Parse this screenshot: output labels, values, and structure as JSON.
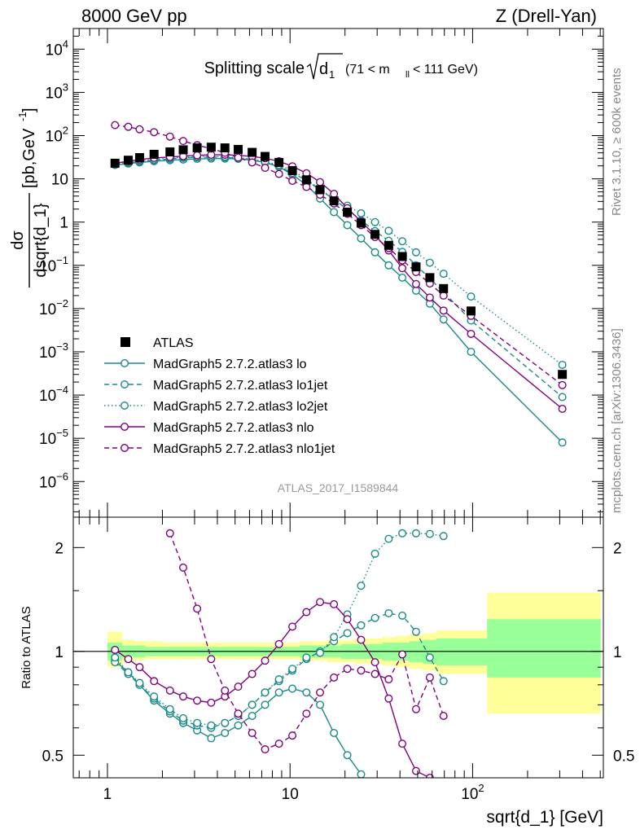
{
  "header": {
    "left": "8000 GeV pp",
    "right": "Z (Drell-Yan)"
  },
  "side_labels": {
    "rivet": "Rivet 3.1.10, ≥ 600k events",
    "mcplots": "mcplots.cern.ch [arXiv:1306.3436]"
  },
  "colors": {
    "atlas": "#000000",
    "teal": "#1a8a8a",
    "purple": "#800080",
    "band_yellow": "#ffff99",
    "band_green": "#99ff99"
  },
  "chart_data": [
    {
      "type": "line",
      "panel": "main",
      "title": "Splitting scale",
      "title_math": {
        "sqrt_base": "d",
        "sqrt_sub": "1",
        "range_pre": "(71 < m",
        "range_sub": "ll",
        "range_post": " < 111 GeV)"
      },
      "ylabel": {
        "num": "dσ",
        "den": "dsqrt{d_1}",
        "unit": "[pb,GeV",
        "unit_sup": "-1",
        "unit_close": "]"
      },
      "xscale": "log",
      "yscale": "log",
      "xlim": [
        0.65,
        520
      ],
      "ylim": [
        1.5e-07,
        30000.0
      ],
      "yticks": [
        {
          "v": 10000.0,
          "b": "10",
          "e": "4"
        },
        {
          "v": 1000.0,
          "b": "10",
          "e": "3"
        },
        {
          "v": 100.0,
          "b": "10",
          "e": "2"
        },
        {
          "v": 10,
          "b": "10",
          "e": ""
        },
        {
          "v": 1,
          "b": "1",
          "e": ""
        },
        {
          "v": 0.1,
          "b": "10",
          "e": "−1"
        },
        {
          "v": 0.01,
          "b": "10",
          "e": "−2"
        },
        {
          "v": 0.001,
          "b": "10",
          "e": "−3"
        },
        {
          "v": 0.0001,
          "b": "10",
          "e": "−4"
        },
        {
          "v": 1e-05,
          "b": "10",
          "e": "−5"
        },
        {
          "v": 1e-06,
          "b": "10",
          "e": "−6"
        }
      ],
      "watermark": "ATLAS_2017_I1589844",
      "legend_position": "lower-left",
      "series": [
        {
          "name": "ATLAS",
          "style": "data",
          "x": [
            1.1,
            1.3,
            1.5,
            1.8,
            2.2,
            2.6,
            3.1,
            3.7,
            4.4,
            5.2,
            6.2,
            7.3,
            8.7,
            10.3,
            12.3,
            14.6,
            17.4,
            20.6,
            24.5,
            29.2,
            34.7,
            41.2,
            49.0,
            58.3,
            69.3,
            98.0,
            310.0
          ],
          "y": [
            23,
            27,
            31,
            37,
            42,
            47,
            52,
            54,
            52,
            48,
            41,
            33,
            24,
            15.5,
            9.5,
            5.6,
            3.1,
            1.7,
            0.95,
            0.52,
            0.29,
            0.16,
            0.092,
            0.052,
            0.029,
            0.0088,
            0.0003
          ]
        },
        {
          "name": "MadGraph5 2.7.2.atlas3 lo",
          "style": "solid",
          "color": "#1a8a8a",
          "x": [
            1.1,
            1.3,
            1.5,
            1.8,
            2.2,
            2.6,
            3.1,
            3.7,
            4.4,
            5.2,
            6.2,
            7.3,
            8.7,
            10.3,
            12.3,
            14.6,
            17.4,
            20.6,
            24.5,
            29.2,
            34.7,
            41.2,
            49.0,
            58.3,
            69.3,
            98.0,
            310.0
          ],
          "y": [
            21,
            22.5,
            24,
            25.5,
            27,
            28,
            29,
            29.5,
            29.5,
            29,
            27,
            24,
            19,
            12.5,
            7.2,
            3.5,
            1.7,
            0.85,
            0.42,
            0.2,
            0.1,
            0.052,
            0.026,
            0.013,
            0.0056,
            0.001,
            8e-06
          ]
        },
        {
          "name": "MadGraph5 2.7.2.atlas3 lo1jet",
          "style": "dashed",
          "color": "#1a8a8a",
          "x": [
            1.1,
            1.3,
            1.5,
            1.8,
            2.2,
            2.6,
            3.1,
            3.7,
            4.4,
            5.2,
            6.2,
            7.3,
            8.7,
            10.3,
            12.3,
            14.6,
            17.4,
            20.6,
            24.5,
            29.2,
            34.7,
            41.2,
            49.0,
            58.3,
            69.3,
            98.0,
            310.0
          ],
          "y": [
            21,
            23,
            25,
            27,
            29,
            30.5,
            31.5,
            32,
            31.5,
            30,
            27.5,
            24,
            19.5,
            13.7,
            9.2,
            5.5,
            3.4,
            1.95,
            1.1,
            0.62,
            0.37,
            0.205,
            0.1,
            0.05,
            0.024,
            0.0053,
            9e-05
          ]
        },
        {
          "name": "MadGraph5 2.7.2.atlas3 lo2jet",
          "style": "dotted",
          "color": "#1a8a8a",
          "x": [
            1.1,
            1.3,
            1.5,
            1.8,
            2.2,
            2.6,
            3.1,
            3.7,
            4.4,
            5.2,
            6.2,
            7.3,
            8.7,
            10.3,
            12.3,
            14.6,
            17.4,
            20.6,
            24.5,
            29.2,
            34.7,
            41.2,
            49.0,
            58.3,
            69.3,
            98.0,
            310.0
          ],
          "y": [
            22,
            24,
            26,
            28,
            30,
            31.5,
            32.5,
            33,
            32.5,
            31,
            28.5,
            25,
            21,
            15.5,
            9.8,
            5.8,
            3.5,
            2.4,
            1.6,
            1.0,
            0.63,
            0.36,
            0.2,
            0.115,
            0.064,
            0.019,
            0.0005
          ]
        },
        {
          "name": "MadGraph5 2.7.2.atlas3 nlo",
          "style": "solid",
          "color": "#800080",
          "x": [
            1.1,
            1.3,
            1.5,
            1.8,
            2.2,
            2.6,
            3.1,
            3.7,
            4.4,
            5.2,
            6.2,
            7.3,
            8.7,
            10.3,
            12.3,
            14.6,
            17.4,
            20.6,
            24.5,
            29.2,
            34.7,
            41.2,
            49.0,
            58.3,
            69.3,
            98.0,
            310.0
          ],
          "y": [
            23,
            25.5,
            28,
            30.5,
            32,
            33.5,
            35,
            36,
            36,
            35,
            33,
            30,
            25.5,
            19.5,
            13.5,
            8.4,
            4.5,
            2.1,
            1.03,
            0.5,
            0.22,
            0.086,
            0.037,
            0.018,
            0.009,
            0.0026,
            4.8e-05
          ]
        },
        {
          "name": "MadGraph5 2.7.2.atlas3 nlo1jet",
          "style": "dashed",
          "color": "#800080",
          "x": [
            1.1,
            1.3,
            1.5,
            1.8,
            2.2,
            2.6,
            3.1,
            3.7,
            4.4,
            5.2,
            6.2,
            7.3,
            8.7,
            10.3,
            12.3,
            14.6,
            17.4,
            20.6,
            24.5,
            29.2,
            34.7,
            41.2,
            49.0,
            58.3,
            69.3,
            98.0,
            310.0
          ],
          "y": [
            175,
            160,
            140,
            120,
            95,
            75,
            60,
            50,
            40,
            31,
            24,
            18,
            13,
            9,
            6.5,
            4.3,
            2.7,
            1.55,
            0.85,
            0.45,
            0.25,
            0.13,
            0.07,
            0.038,
            0.02,
            0.0068,
            0.00017
          ]
        }
      ]
    },
    {
      "type": "line",
      "panel": "ratio",
      "ylabel": "Ratio to ATLAS",
      "xlabel": "sqrt{d_1} [GeV]",
      "xscale": "log",
      "yscale": "log",
      "xlim": [
        0.65,
        520
      ],
      "ylim": [
        0.43,
        2.45
      ],
      "reference_line": 1,
      "yticks": [
        {
          "v": 2,
          "label": "2"
        },
        {
          "v": 1,
          "label": "1"
        },
        {
          "v": 0.5,
          "label": "0.5"
        }
      ],
      "xticks": [
        {
          "v": 1,
          "b": "1",
          "e": ""
        },
        {
          "v": 10,
          "b": "10",
          "e": ""
        },
        {
          "v": 100,
          "b": "10",
          "e": "2"
        }
      ],
      "uncertainty_bands": {
        "edges": [
          1.0,
          1.2,
          1.4,
          1.6,
          2.0,
          2.4,
          2.8,
          3.4,
          4.0,
          4.8,
          5.7,
          6.7,
          8.0,
          9.5,
          11.3,
          13.4,
          16.0,
          19.0,
          22.6,
          26.9,
          32.0,
          38.0,
          45.0,
          53.5,
          63.5,
          75.6,
          120.0,
          500.0
        ],
        "yellow_low": [
          0.9,
          0.93,
          0.94,
          0.95,
          0.95,
          0.95,
          0.95,
          0.95,
          0.95,
          0.95,
          0.95,
          0.95,
          0.95,
          0.95,
          0.94,
          0.94,
          0.93,
          0.93,
          0.92,
          0.92,
          0.91,
          0.9,
          0.89,
          0.88,
          0.86,
          0.86,
          0.66
        ],
        "yellow_high": [
          1.14,
          1.08,
          1.07,
          1.07,
          1.06,
          1.06,
          1.06,
          1.06,
          1.06,
          1.06,
          1.06,
          1.06,
          1.06,
          1.06,
          1.07,
          1.07,
          1.08,
          1.08,
          1.09,
          1.09,
          1.1,
          1.11,
          1.12,
          1.13,
          1.15,
          1.15,
          1.48
        ],
        "green_low": [
          0.94,
          0.96,
          0.96,
          0.97,
          0.97,
          0.97,
          0.97,
          0.97,
          0.97,
          0.97,
          0.97,
          0.97,
          0.97,
          0.97,
          0.96,
          0.96,
          0.96,
          0.95,
          0.95,
          0.95,
          0.94,
          0.94,
          0.93,
          0.92,
          0.91,
          0.91,
          0.84
        ],
        "green_high": [
          1.06,
          1.04,
          1.04,
          1.03,
          1.03,
          1.03,
          1.03,
          1.03,
          1.03,
          1.03,
          1.03,
          1.03,
          1.03,
          1.03,
          1.04,
          1.04,
          1.04,
          1.05,
          1.05,
          1.05,
          1.06,
          1.06,
          1.07,
          1.08,
          1.09,
          1.09,
          1.24
        ]
      },
      "series": [
        {
          "name": "MadGraph5 2.7.2.atlas3 lo",
          "style": "solid",
          "color": "#1a8a8a",
          "x": [
            1.1,
            1.3,
            1.5,
            1.8,
            2.2,
            2.6,
            3.1,
            3.7,
            4.4,
            5.2,
            6.2,
            7.3,
            8.7,
            10.3,
            12.3,
            14.6,
            17.4,
            20.6,
            24.5,
            29.2
          ],
          "y": [
            0.94,
            0.87,
            0.8,
            0.72,
            0.66,
            0.62,
            0.59,
            0.56,
            0.58,
            0.61,
            0.65,
            0.7,
            0.76,
            0.78,
            0.76,
            0.7,
            0.58,
            0.5,
            0.44,
            0.39
          ]
        },
        {
          "name": "MadGraph5 2.7.2.atlas3 lo1jet",
          "style": "dashed",
          "color": "#1a8a8a",
          "x": [
            1.1,
            1.3,
            1.5,
            1.8,
            2.2,
            2.6,
            3.1,
            3.7,
            4.4,
            5.2,
            6.2,
            7.3,
            8.7,
            10.3,
            12.3,
            14.6,
            17.4,
            20.6,
            24.5,
            29.2,
            34.7,
            41.2,
            49.0,
            58.3,
            69.3
          ],
          "y": [
            0.93,
            0.86,
            0.8,
            0.73,
            0.67,
            0.63,
            0.61,
            0.6,
            0.62,
            0.65,
            0.7,
            0.76,
            0.82,
            0.88,
            0.95,
            1.0,
            1.07,
            1.13,
            1.19,
            1.25,
            1.29,
            1.27,
            1.14,
            0.96,
            0.82
          ]
        },
        {
          "name": "MadGraph5 2.7.2.atlas3 lo2jet",
          "style": "dotted",
          "color": "#1a8a8a",
          "x": [
            1.1,
            1.3,
            1.5,
            1.8,
            2.2,
            2.6,
            3.1,
            3.7,
            4.4,
            5.2,
            6.2,
            7.3,
            8.7,
            10.3,
            12.3,
            14.6,
            17.4,
            20.6,
            24.5,
            29.2,
            34.7,
            41.2,
            49.0,
            58.3,
            69.3
          ],
          "y": [
            0.96,
            0.87,
            0.81,
            0.74,
            0.68,
            0.64,
            0.62,
            0.61,
            0.62,
            0.65,
            0.7,
            0.76,
            0.83,
            0.89,
            0.96,
            0.99,
            1.1,
            1.28,
            1.55,
            1.92,
            2.12,
            2.2,
            2.2,
            2.19,
            2.16
          ]
        },
        {
          "name": "MadGraph5 2.7.2.atlas3 nlo",
          "style": "solid",
          "color": "#800080",
          "x": [
            1.1,
            1.3,
            1.5,
            1.8,
            2.2,
            2.6,
            3.1,
            3.7,
            4.4,
            5.2,
            6.2,
            7.3,
            8.7,
            10.3,
            12.3,
            14.6,
            17.4,
            20.6,
            24.5,
            29.2,
            34.7,
            41.2,
            49.0,
            58.3
          ],
          "y": [
            1.01,
            0.95,
            0.9,
            0.82,
            0.77,
            0.74,
            0.72,
            0.71,
            0.74,
            0.79,
            0.86,
            0.94,
            1.05,
            1.18,
            1.3,
            1.39,
            1.37,
            1.24,
            1.08,
            0.93,
            0.73,
            0.54,
            0.45,
            0.43
          ]
        },
        {
          "name": "MadGraph5 2.7.2.atlas3 nlo1jet",
          "style": "dashed",
          "color": "#800080",
          "x": [
            2.2,
            2.6,
            3.1,
            3.7,
            4.4,
            5.2,
            6.2,
            7.3,
            8.7,
            10.3,
            12.3,
            14.6,
            17.4,
            20.6,
            24.5,
            29.2,
            34.7,
            41.2,
            49.0,
            58.3,
            69.3
          ],
          "y": [
            2.2,
            1.75,
            1.33,
            0.95,
            0.77,
            0.66,
            0.58,
            0.52,
            0.54,
            0.57,
            0.66,
            0.76,
            0.84,
            0.89,
            0.88,
            0.86,
            0.83,
            0.98,
            0.68,
            0.84,
            0.65
          ]
        }
      ]
    }
  ]
}
